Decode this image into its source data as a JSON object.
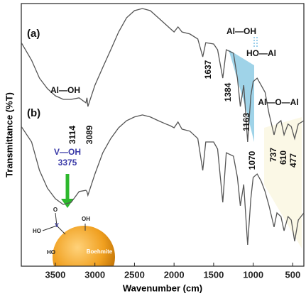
{
  "chart_data": {
    "type": "line",
    "xlabel": "Wavenumber (cm)",
    "ylabel": "Transmittance (%T)",
    "xlim": [
      3930,
      360
    ],
    "ylim": [
      0,
      100
    ],
    "xticks": [
      3500,
      3000,
      2500,
      2000,
      1500,
      1000,
      500
    ],
    "x": [
      3930,
      3800,
      3700,
      3600,
      3500,
      3400,
      3300,
      3200,
      3114,
      3100,
      3089,
      3000,
      2900,
      2800,
      2700,
      2600,
      2500,
      2400,
      2300,
      2200,
      2100,
      2050,
      2000,
      1950,
      1900,
      1800,
      1700,
      1637,
      1600,
      1500,
      1450,
      1384,
      1340,
      1250,
      1200,
      1163,
      1120,
      1070,
      1030,
      1000,
      950,
      900,
      850,
      800,
      737,
      700,
      650,
      610,
      560,
      520,
      477,
      430,
      360
    ],
    "series": [
      {
        "name": "(a)",
        "color": "#555555",
        "values": [
          85.1,
          78.4,
          71.6,
          67.6,
          64.9,
          63.5,
          63.5,
          64.1,
          62.2,
          64.1,
          60.8,
          68.9,
          75.7,
          82.4,
          89.2,
          94.6,
          97.3,
          98.1,
          97.3,
          94.6,
          91.9,
          90.5,
          89.2,
          91.1,
          89.2,
          88.4,
          86.5,
          79.7,
          85.1,
          84.6,
          82.4,
          71.6,
          82.4,
          81.1,
          71.6,
          60.8,
          68.9,
          47.3,
          64.9,
          70.3,
          71.6,
          68.9,
          66.2,
          58.1,
          50.0,
          54.1,
          55.4,
          50.0,
          54.1,
          53.2,
          48.6,
          54.1,
          55.4
        ]
      },
      {
        "name": "(b)",
        "color": "#555555",
        "values": [
          53.2,
          47.3,
          36.5,
          29.7,
          25.7,
          23.5,
          24.3,
          28.4,
          28.9,
          28.4,
          27.0,
          35.1,
          43.2,
          48.6,
          52.7,
          55.4,
          56.8,
          57.6,
          56.8,
          55.4,
          54.1,
          53.5,
          52.7,
          54.9,
          52.2,
          51.4,
          48.6,
          36.5,
          47.3,
          47.3,
          44.6,
          24.3,
          43.2,
          41.9,
          33.8,
          23.0,
          31.1,
          8.1,
          25.7,
          33.8,
          35.1,
          32.4,
          28.4,
          23.0,
          14.9,
          20.3,
          18.9,
          13.5,
          18.9,
          17.6,
          9.5,
          17.6,
          20.3
        ]
      }
    ],
    "peaks": [
      3114,
      3089,
      1637,
      1384,
      1163,
      1070,
      737,
      610,
      477
    ],
    "v_oh_peak": 3375,
    "annotations": {
      "al_oh": "Al—OH",
      "al_oh_top": "Al—OH",
      "ho_al": "HO—Al",
      "al_o_al": "Al—O—Al",
      "v_oh": "V—OH"
    },
    "inset_labels": [
      "HO",
      "V",
      "O",
      "OH",
      "HO",
      "Boehmite"
    ]
  }
}
